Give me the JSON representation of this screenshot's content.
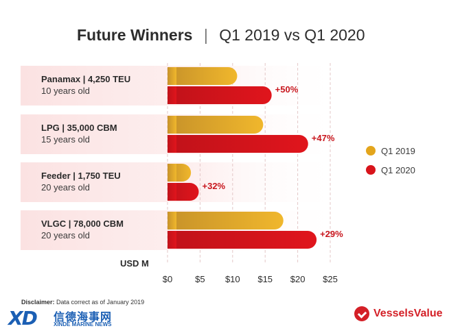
{
  "title": {
    "main": "Future Winners",
    "separator": "|",
    "sub": "Q1 2019 vs Q1 2020"
  },
  "chart_data": {
    "type": "bar",
    "orientation": "horizontal",
    "title": "Future Winners | Q1 2019 vs Q1 2020",
    "xlabel": "USD M",
    "xlim": [
      0,
      25
    ],
    "xticks": [
      0,
      5,
      10,
      15,
      20,
      25
    ],
    "xtick_labels": [
      "$0",
      "$5",
      "$10",
      "$15",
      "$20",
      "$25"
    ],
    "categories": [
      {
        "name": "Panamax | 4,250 TEU",
        "sub": "10 years old"
      },
      {
        "name": "LPG | 35,000 CBM",
        "sub": "15 years old"
      },
      {
        "name": "Feeder | 1,750 TEU",
        "sub": "20 years old"
      },
      {
        "name": "VLGC | 78,000 CBM",
        "sub": "20 years old"
      }
    ],
    "series": [
      {
        "name": "Q1 2019",
        "color": "#e3a51c",
        "values": [
          10.7,
          14.7,
          3.6,
          17.8
        ]
      },
      {
        "name": "Q1 2020",
        "color": "#d8141b",
        "values": [
          16,
          21.6,
          4.8,
          22.9
        ]
      }
    ],
    "change_labels": [
      "+50%",
      "+47%",
      "+32%",
      "+29%"
    ],
    "grid": true,
    "legend": "right"
  },
  "footer": {
    "disclaimer_label": "Disclaimer:",
    "disclaimer_text": " Data correct as of January 2019",
    "brand_left_logo": "XD",
    "brand_left_cn": "信德海事网",
    "brand_left_en": "XINDE MARINE NEWS",
    "brand_right": "VesselsValue"
  }
}
